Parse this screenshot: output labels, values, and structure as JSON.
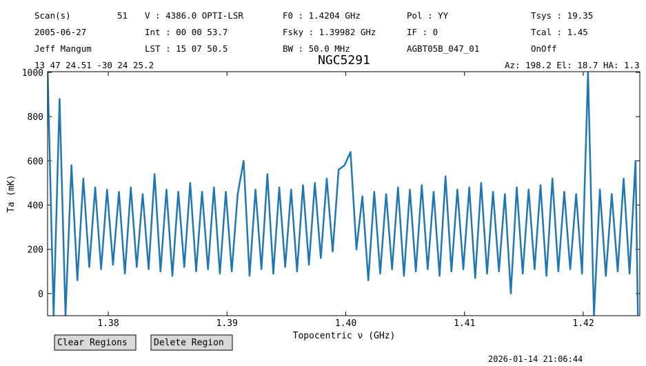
{
  "header": {
    "items": [
      "Scan(s)",
      "51",
      "V   : 4386.0 OPTI-LSR",
      "F0   :  1.4204 GHz",
      "Pol :   YY",
      "Tsys   :  19.35",
      "2005-06-27",
      "Int : 00 00 53.7",
      "Fsky :  1.39982 GHz",
      "IF  :    0",
      "Tcal   :  1.45",
      "Jeff Mangum",
      "LST : 15 07 50.5",
      "BW   :  50.0 MHz",
      "AGBT05B_047_01",
      "OnOff",
      "13 47 24.51  -30 24 25.2",
      "Az: 198.2  El: 18.7  HA: 1.3"
    ]
  },
  "chart_data": {
    "type": "line",
    "title": "NGC5291",
    "x_label": "Topocentric ν (GHz)",
    "y_label": "Ta (mK)",
    "xlim": [
      1.37489,
      1.42476
    ],
    "ylim": [
      -100,
      1003
    ],
    "xticks": [
      1.38,
      1.39,
      {
        "value": 1.4,
        "label": "1.40"
      },
      1.41,
      1.42
    ],
    "yticks": [
      0,
      200,
      400,
      600,
      800,
      1000
    ],
    "series": [
      {
        "color": "#1f77b4",
        "x": [
          1.3749,
          1.3754,
          1.3759,
          1.3764,
          1.3769,
          1.3774,
          1.3779,
          1.3784,
          1.3789,
          1.3794,
          1.3799,
          1.3804,
          1.3809,
          1.3814,
          1.3819,
          1.3824,
          1.3829,
          1.3834,
          1.3839,
          1.3844,
          1.3849,
          1.3854,
          1.3859,
          1.3864,
          1.3869,
          1.3874,
          1.3879,
          1.3884,
          1.3889,
          1.3894,
          1.3899,
          1.3904,
          1.3909,
          1.3914,
          1.3919,
          1.3924,
          1.3929,
          1.3934,
          1.3939,
          1.3944,
          1.3949,
          1.3954,
          1.3959,
          1.3964,
          1.3969,
          1.3974,
          1.3979,
          1.3984,
          1.3989,
          1.3994,
          1.3999,
          1.4004,
          1.4009,
          1.4014,
          1.4019,
          1.4024,
          1.4029,
          1.4034,
          1.4039,
          1.4044,
          1.4049,
          1.4054,
          1.4059,
          1.4064,
          1.4069,
          1.4074,
          1.4079,
          1.4084,
          1.4089,
          1.4094,
          1.4099,
          1.4104,
          1.4109,
          1.4114,
          1.4119,
          1.4124,
          1.4129,
          1.4134,
          1.4139,
          1.4144,
          1.4149,
          1.4154,
          1.4159,
          1.4164,
          1.4169,
          1.4174,
          1.4179,
          1.4184,
          1.4189,
          1.4194,
          1.4199,
          1.4204,
          1.4209,
          1.4214,
          1.4219,
          1.4224,
          1.4229,
          1.4234,
          1.4239,
          1.4244,
          1.4246
        ],
        "values": [
          1000,
          -100,
          880,
          -100,
          580,
          60,
          520,
          120,
          480,
          110,
          470,
          130,
          460,
          90,
          480,
          120,
          450,
          110,
          540,
          100,
          470,
          80,
          460,
          120,
          500,
          100,
          460,
          110,
          480,
          90,
          460,
          100,
          450,
          600,
          80,
          470,
          110,
          540,
          90,
          480,
          120,
          470,
          100,
          490,
          130,
          500,
          160,
          520,
          190,
          560,
          580,
          640,
          200,
          440,
          60,
          460,
          90,
          450,
          110,
          480,
          80,
          470,
          100,
          490,
          110,
          460,
          80,
          530,
          100,
          470,
          110,
          480,
          70,
          500,
          90,
          460,
          100,
          450,
          0,
          480,
          90,
          470,
          110,
          490,
          80,
          520,
          100,
          460,
          110,
          450,
          90,
          1000,
          -100,
          470,
          80,
          450,
          100,
          520,
          90,
          600,
          -100
        ]
      }
    ]
  },
  "controls": {
    "clear": "Clear Regions",
    "delete": "Delete Region"
  },
  "timestamp": "2026-01-14 21:06:44"
}
